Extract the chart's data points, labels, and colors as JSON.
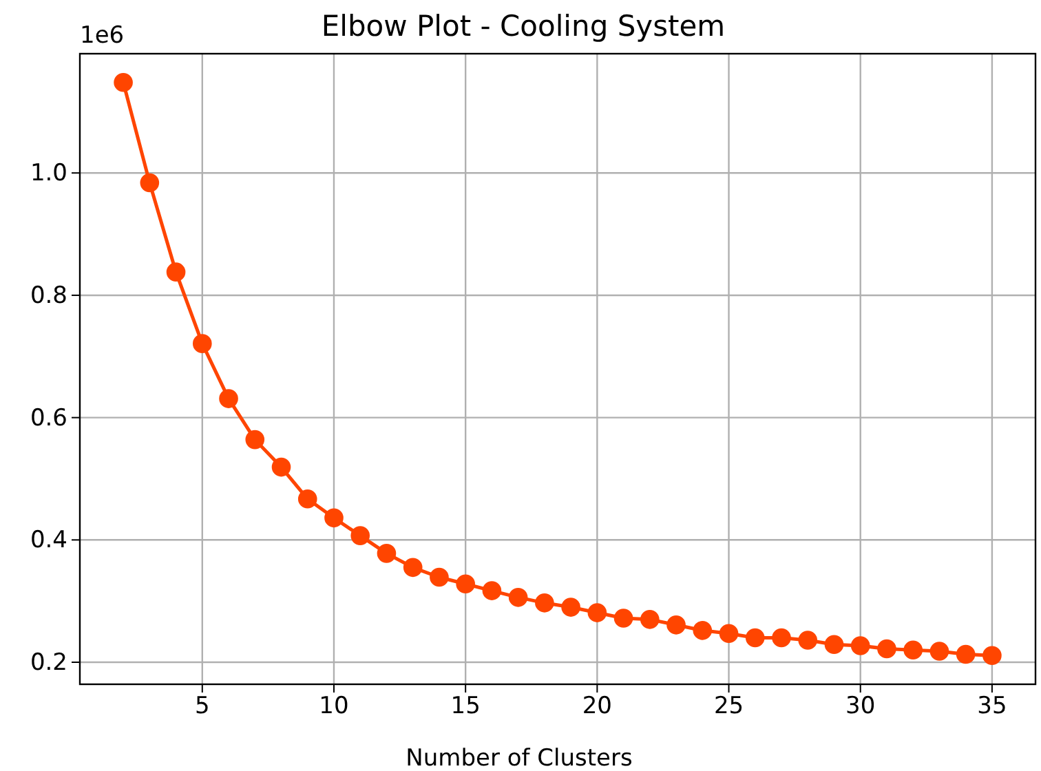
{
  "chart_data": {
    "type": "line",
    "title": "Elbow Plot - Cooling System",
    "xlabel": "Number of Clusters",
    "annotations": [
      "1e6"
    ],
    "x": [
      2,
      3,
      4,
      5,
      6,
      7,
      8,
      9,
      10,
      11,
      12,
      13,
      14,
      15,
      16,
      17,
      18,
      19,
      20,
      21,
      22,
      23,
      24,
      25,
      26,
      27,
      28,
      29,
      30,
      31,
      32,
      33,
      34,
      35
    ],
    "series": [
      {
        "color": "#ff4500",
        "values": [
          1.148,
          0.984,
          0.838,
          0.721,
          0.631,
          0.564,
          0.519,
          0.467,
          0.436,
          0.407,
          0.378,
          0.355,
          0.339,
          0.328,
          0.317,
          0.306,
          0.297,
          0.29,
          0.281,
          0.272,
          0.27,
          0.261,
          0.252,
          0.247,
          0.24,
          0.24,
          0.236,
          0.229,
          0.227,
          0.222,
          0.22,
          0.218,
          0.213,
          0.211
        ]
      }
    ],
    "xlim": [
      0.35,
      36.65
    ],
    "ylim": [
      0.164,
      1.195
    ],
    "xticks": [
      5,
      10,
      15,
      20,
      25,
      30,
      35
    ],
    "yticks": [
      0.2,
      0.4,
      0.6,
      0.8,
      {
        "value": 1,
        "label": "1.0"
      }
    ],
    "grid": true,
    "marker": "circle",
    "line_style": "solid"
  }
}
